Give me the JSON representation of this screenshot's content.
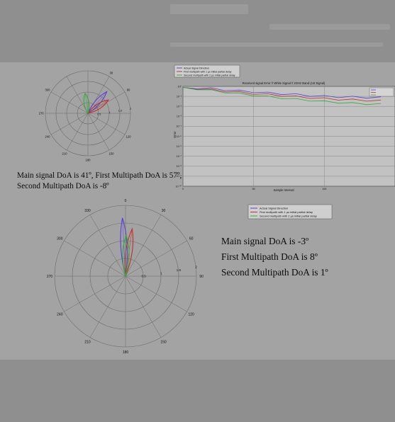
{
  "polar_tick_labels": {
    "top": {
      "angles": [
        "30",
        "60",
        "120",
        "150",
        "180",
        "210",
        "240",
        "270",
        "300"
      ],
      "radii": [
        "0.5",
        "1",
        "1.5",
        "2"
      ]
    },
    "bottom": {
      "angles": [
        "0",
        "30",
        "60",
        "90",
        "120",
        "150",
        "180",
        "210",
        "240",
        "270",
        "300",
        "330"
      ],
      "radii": [
        "0.5",
        "1",
        "1.5",
        "2"
      ]
    }
  },
  "captions": {
    "first": [
      "Main signal DoA is 41º, First Multipath DoA is 57º,",
      "Second Multipath DoA is -8º"
    ],
    "second": [
      "Main signal DoA is -3º",
      "First Multipath DoA is 8º",
      "Second Multipath DoA is 1º"
    ]
  },
  "legends": {
    "top_polar": [
      "Actual Signal Direction",
      "First multipath with 1 µs initial partial delay",
      "Second multipath with 2 µs initial partial delay"
    ],
    "bottom_polar": [
      "Actual Signal Direction",
      "First multipath with 1 µs initial partial delay",
      "Second multipath with 2 µs initial partial delay"
    ]
  },
  "colors": {
    "main": "#5a3fd6",
    "first_multipath": "#c23030",
    "second_multipath": "#2fae3a",
    "grid": "#6a6a6a"
  },
  "chart_data": [
    {
      "type": "polar",
      "direction_series": [
        {
          "role": "main",
          "angle_deg": 41,
          "magnitude": 1.35
        },
        {
          "role": "first_multipath",
          "angle_deg": 57,
          "magnitude": 1.15
        },
        {
          "role": "second_multipath",
          "angle_deg": -8,
          "magnitude": 0.95
        }
      ],
      "rmax": 2
    },
    {
      "type": "line",
      "title": "Received signal Error // White Signal // 2GHz Band (1st Signal)",
      "xlabel": "Sample Interval",
      "ylabel": "Error",
      "yscale": "log",
      "legend": "top-right",
      "x_ticks": [
        "0",
        "50",
        "100"
      ],
      "y_ticks": [
        "10⁰",
        "10⁻¹",
        "10⁻²",
        "10⁻³",
        "10⁻⁴",
        "10⁻⁵",
        "10⁻⁶",
        "10⁻⁷",
        "10⁻⁸",
        "10⁻⁹",
        "10⁻¹⁰"
      ],
      "series": [
        {
          "role": "main",
          "x": [
            0,
            10,
            20,
            30,
            40,
            50,
            60,
            70,
            80,
            90,
            100,
            110,
            120,
            130,
            140
          ],
          "y": [
            0.8,
            0.7,
            0.6,
            0.45,
            0.35,
            0.28,
            0.22,
            0.18,
            0.15,
            0.12,
            0.1,
            0.09,
            0.085,
            0.08,
            0.075
          ]
        },
        {
          "role": "first_multipath",
          "x": [
            0,
            10,
            20,
            30,
            40,
            50,
            60,
            70,
            80,
            90,
            100,
            110,
            120,
            130,
            140
          ],
          "y": [
            0.8,
            0.6,
            0.45,
            0.33,
            0.25,
            0.19,
            0.15,
            0.12,
            0.09,
            0.075,
            0.06,
            0.05,
            0.045,
            0.04,
            0.035
          ]
        },
        {
          "role": "second_multipath",
          "x": [
            0,
            10,
            20,
            30,
            40,
            50,
            60,
            70,
            80,
            90,
            100,
            110,
            120,
            130,
            140
          ],
          "y": [
            0.8,
            0.55,
            0.38,
            0.26,
            0.18,
            0.13,
            0.09,
            0.07,
            0.05,
            0.04,
            0.03,
            0.025,
            0.02,
            0.018,
            0.016
          ]
        }
      ],
      "xlim": [
        0,
        150
      ],
      "ylim": [
        1e-10,
        1
      ]
    },
    {
      "type": "polar",
      "direction_series": [
        {
          "role": "main",
          "angle_deg": -3,
          "magnitude": 1.65
        },
        {
          "role": "first_multipath",
          "angle_deg": 8,
          "magnitude": 1.35
        },
        {
          "role": "second_multipath",
          "angle_deg": 1,
          "magnitude": 1.15
        }
      ],
      "rmax": 2
    }
  ]
}
